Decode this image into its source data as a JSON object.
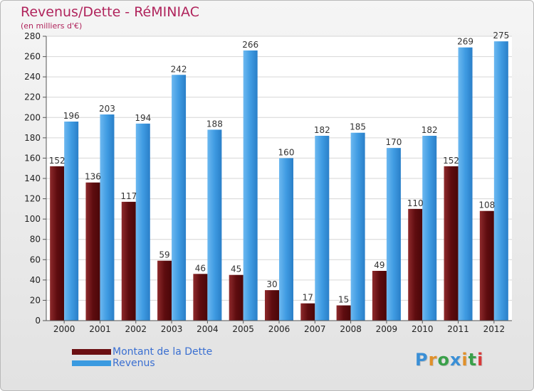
{
  "header": {
    "title": "Revenus/Dette - RéMINIAC",
    "subtitle": "(en milliers d'€)"
  },
  "legend": {
    "items": [
      {
        "label": "Montant de la Dette",
        "color": "#6b0f12"
      },
      {
        "label": "Revenus",
        "color": "#3a9ae0"
      }
    ]
  },
  "logo": {
    "text": "Proxiti",
    "letter_colors": [
      "#3a8fd6",
      "#e0902a",
      "#3aa04a",
      "#3a8fd6",
      "#e0902a",
      "#3aa04a",
      "#d83a3a"
    ]
  },
  "chart_data": {
    "type": "bar",
    "title": "Revenus/Dette - RéMINIAC",
    "subtitle": "(en milliers d'€)",
    "categories": [
      "2000",
      "2001",
      "2002",
      "2003",
      "2004",
      "2005",
      "2006",
      "2007",
      "2008",
      "2009",
      "2010",
      "2011",
      "2012"
    ],
    "series": [
      {
        "name": "Montant de la Dette",
        "color": "#6b0f12",
        "values": [
          152,
          136,
          117,
          59,
          46,
          45,
          30,
          17,
          15,
          49,
          110,
          152,
          108
        ]
      },
      {
        "name": "Revenus",
        "color": "#3a9ae0",
        "values": [
          196,
          203,
          194,
          242,
          188,
          266,
          160,
          182,
          185,
          170,
          182,
          269,
          275
        ]
      }
    ],
    "ylim": [
      0,
      280
    ],
    "yticks": [
      0,
      20,
      40,
      60,
      80,
      100,
      120,
      140,
      160,
      180,
      200,
      220,
      240,
      260,
      280
    ],
    "grid": true,
    "legend_position": "bottom-left",
    "show_data_labels": true
  }
}
